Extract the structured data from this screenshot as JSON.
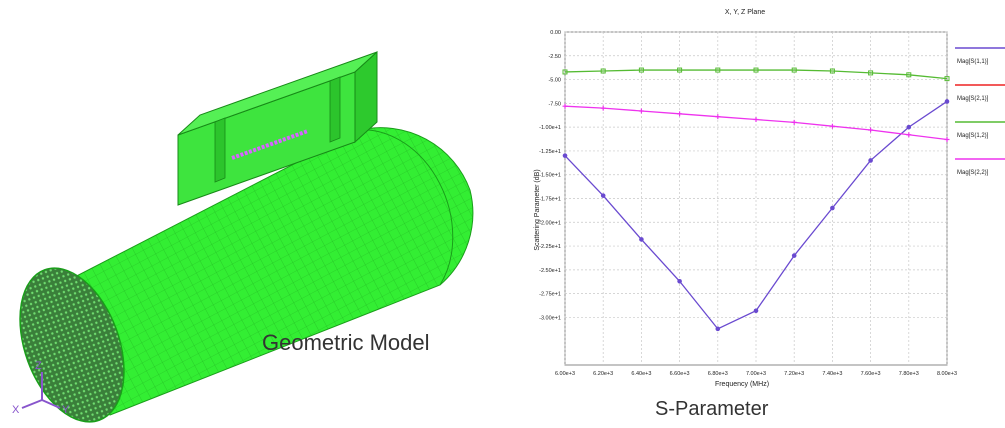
{
  "model": {
    "caption": "Geometric Model",
    "axes": {
      "x": "X",
      "y": "Y",
      "z": "Z"
    },
    "colors": {
      "mesh_fill": "#33ee33",
      "mesh_line": "#1a9e1a",
      "probe": "#d666ff",
      "triad": "#8855cc"
    }
  },
  "chart": {
    "caption": "S-Parameter",
    "title": "X, Y, Z Plane",
    "xlabel": "Frequency (MHz)",
    "ylabel": "Scattering Parameter (dB)",
    "colors": {
      "plot_bg": "#ffffff",
      "grid": "#c8c8c8"
    }
  },
  "chart_data": {
    "type": "line",
    "title": "X, Y, Z Plane",
    "xlabel": "Frequency (MHz)",
    "ylabel": "Scattering Parameter (dB)",
    "x": [
      6000,
      6200,
      6400,
      6600,
      6800,
      7000,
      7200,
      7400,
      7600,
      7800,
      8000
    ],
    "xticklabels": [
      "6.00e+3",
      "6.20e+3",
      "6.40e+3",
      "6.60e+3",
      "6.80e+3",
      "7.00e+3",
      "7.20e+3",
      "7.40e+3",
      "7.60e+3",
      "7.80e+3",
      "8.00e+3"
    ],
    "xlim": [
      6000,
      8000
    ],
    "ylim": [
      -35,
      0
    ],
    "yticks": [
      0,
      -2.5,
      -5,
      -7.5,
      -10,
      -12.5,
      -15,
      -17.5,
      -20,
      -22.5,
      -25,
      -27.5,
      -30
    ],
    "yticklabels": [
      "0.00",
      "-2.50",
      "-5.00",
      "-7.50",
      "-1.00e+1",
      "-1.25e+1",
      "-1.50e+1",
      "-1.75e+1",
      "-2.00e+1",
      "-2.25e+1",
      "-2.50e+1",
      "-2.75e+1",
      "-3.00e+1"
    ],
    "grid": true,
    "legend_position": "right",
    "series": [
      {
        "name": "Mag[S(1,1)]",
        "color": "#6a4ad0",
        "marker": "circle",
        "values": [
          -13.0,
          -17.2,
          -21.8,
          -26.2,
          -31.2,
          -29.3,
          -23.5,
          -18.5,
          -13.5,
          -10.0,
          -7.3
        ]
      },
      {
        "name": "Mag[S(2,1)]",
        "color": "#ee2222",
        "marker": "square",
        "values": [
          null,
          null,
          null,
          null,
          null,
          null,
          null,
          null,
          null,
          null,
          null
        ]
      },
      {
        "name": "Mag[S(1,2)]",
        "color": "#55bb33",
        "marker": "square",
        "values": [
          -4.2,
          -4.1,
          -4.0,
          -4.0,
          -4.0,
          -4.0,
          -4.0,
          -4.1,
          -4.3,
          -4.5,
          -4.9
        ]
      },
      {
        "name": "Mag[S(2,2)]",
        "color": "#ee33ee",
        "marker": "plus",
        "values": [
          -7.8,
          -8.0,
          -8.3,
          -8.6,
          -8.9,
          -9.2,
          -9.5,
          -9.9,
          -10.3,
          -10.8,
          -11.3
        ]
      }
    ]
  }
}
